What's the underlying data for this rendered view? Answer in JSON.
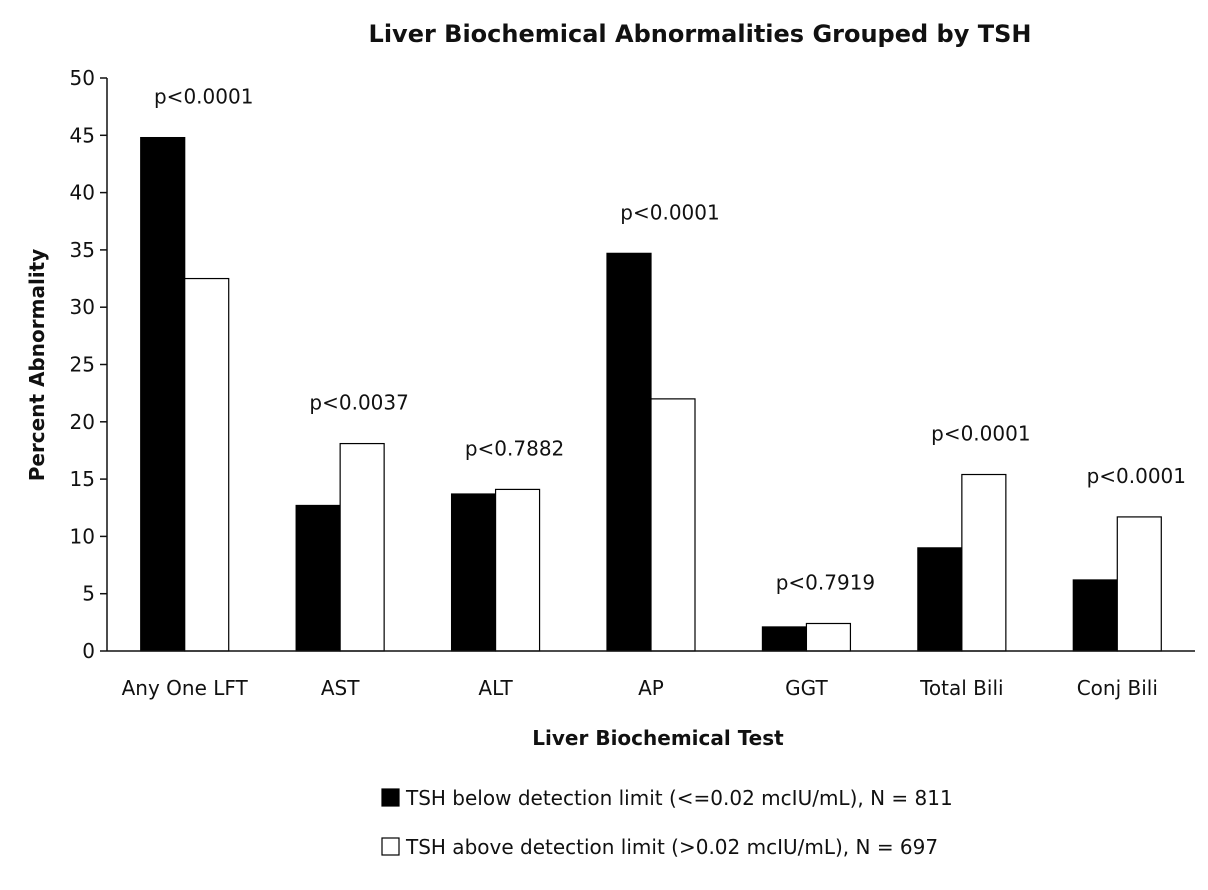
{
  "chart_data": {
    "type": "bar",
    "title": "Liver Biochemical Abnormalities Grouped by TSH",
    "xlabel": "Liver Biochemical Test",
    "ylabel": "Percent Abnormality",
    "ylim": [
      0,
      50
    ],
    "yticks": [
      0,
      5,
      10,
      15,
      20,
      25,
      30,
      35,
      40,
      45,
      50
    ],
    "grid": false,
    "legend_position": "bottom",
    "categories": [
      "Any One LFT",
      "AST",
      "ALT",
      "AP",
      "GGT",
      "Total Bili",
      "Conj Bili"
    ],
    "series": [
      {
        "name": "TSH below detection limit (<=0.02 mcIU/mL), N = 811",
        "color": "#000000",
        "values": [
          44.8,
          12.7,
          13.7,
          34.7,
          2.1,
          9.0,
          6.2
        ]
      },
      {
        "name": "TSH above detection limit (>0.02 mcIU/mL), N = 697",
        "color": "#ffffff",
        "values": [
          32.5,
          18.1,
          14.1,
          22.0,
          2.4,
          15.4,
          11.7
        ]
      }
    ],
    "annotations": [
      "p<0.0001",
      "p<0.0037",
      "p<0.7882",
      "p<0.0001",
      "p<0.7919",
      "p<0.0001",
      "p<0.0001"
    ]
  }
}
